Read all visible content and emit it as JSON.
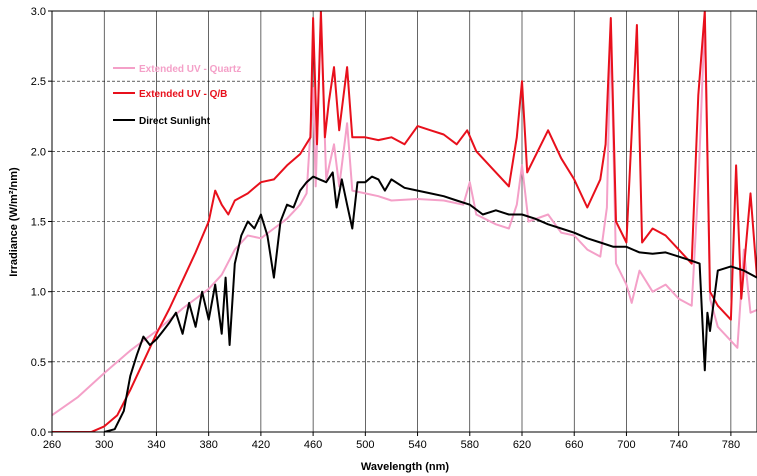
{
  "chart_data": {
    "type": "line",
    "xlabel": "Wavelength (nm)",
    "ylabel": "Irradiance (W/m²/nm)",
    "xlim": [
      260,
      800
    ],
    "ylim": [
      0,
      3.0
    ],
    "x_ticks": [
      "260",
      "300",
      "340",
      "380",
      "420",
      "460",
      "500",
      "540",
      "580",
      "620",
      "660",
      "700",
      "740",
      "780"
    ],
    "y_ticks": [
      "0.0",
      "0.5",
      "1.0",
      "1.5",
      "2.0",
      "2.5",
      "3.0"
    ],
    "grid": "dashed horizontal, solid vertical",
    "legend_position": "top-left inside plot",
    "series": [
      {
        "name": "Extended UV - Quartz",
        "color": "#f4a0c8",
        "points": [
          [
            260,
            0.12
          ],
          [
            280,
            0.25
          ],
          [
            300,
            0.42
          ],
          [
            320,
            0.58
          ],
          [
            340,
            0.72
          ],
          [
            360,
            0.88
          ],
          [
            380,
            1.02
          ],
          [
            390,
            1.12
          ],
          [
            400,
            1.3
          ],
          [
            410,
            1.4
          ],
          [
            420,
            1.38
          ],
          [
            430,
            1.45
          ],
          [
            440,
            1.52
          ],
          [
            450,
            1.62
          ],
          [
            455,
            1.7
          ],
          [
            460,
            2.45
          ],
          [
            462,
            1.75
          ],
          [
            466,
            2.95
          ],
          [
            470,
            1.8
          ],
          [
            476,
            2.05
          ],
          [
            480,
            1.75
          ],
          [
            486,
            2.2
          ],
          [
            490,
            1.72
          ],
          [
            500,
            1.7
          ],
          [
            510,
            1.68
          ],
          [
            520,
            1.65
          ],
          [
            540,
            1.66
          ],
          [
            560,
            1.65
          ],
          [
            575,
            1.62
          ],
          [
            580,
            1.78
          ],
          [
            585,
            1.55
          ],
          [
            600,
            1.48
          ],
          [
            610,
            1.45
          ],
          [
            616,
            1.62
          ],
          [
            620,
            1.9
          ],
          [
            625,
            1.5
          ],
          [
            640,
            1.55
          ],
          [
            650,
            1.42
          ],
          [
            660,
            1.4
          ],
          [
            670,
            1.3
          ],
          [
            680,
            1.25
          ],
          [
            685,
            1.6
          ],
          [
            688,
            2.9
          ],
          [
            692,
            1.2
          ],
          [
            700,
            1.05
          ],
          [
            704,
            0.92
          ],
          [
            710,
            1.15
          ],
          [
            720,
            1.0
          ],
          [
            730,
            1.05
          ],
          [
            740,
            0.95
          ],
          [
            750,
            0.9
          ],
          [
            755,
            1.75
          ],
          [
            760,
            2.95
          ],
          [
            764,
            0.95
          ],
          [
            770,
            0.75
          ],
          [
            780,
            0.65
          ],
          [
            785,
            0.6
          ],
          [
            790,
            1.3
          ],
          [
            795,
            0.85
          ],
          [
            800,
            0.87
          ]
        ]
      },
      {
        "name": "Extended UV - Q/B",
        "color": "#e8101c",
        "points": [
          [
            260,
            0.0
          ],
          [
            290,
            0.0
          ],
          [
            300,
            0.04
          ],
          [
            310,
            0.12
          ],
          [
            320,
            0.3
          ],
          [
            330,
            0.5
          ],
          [
            340,
            0.7
          ],
          [
            350,
            0.88
          ],
          [
            360,
            1.08
          ],
          [
            370,
            1.28
          ],
          [
            380,
            1.5
          ],
          [
            385,
            1.72
          ],
          [
            390,
            1.62
          ],
          [
            395,
            1.55
          ],
          [
            400,
            1.65
          ],
          [
            410,
            1.7
          ],
          [
            420,
            1.78
          ],
          [
            430,
            1.8
          ],
          [
            440,
            1.9
          ],
          [
            450,
            1.98
          ],
          [
            458,
            2.1
          ],
          [
            460,
            2.95
          ],
          [
            463,
            2.05
          ],
          [
            466,
            3.0
          ],
          [
            469,
            2.1
          ],
          [
            472,
            2.35
          ],
          [
            476,
            2.6
          ],
          [
            480,
            2.15
          ],
          [
            486,
            2.6
          ],
          [
            490,
            2.1
          ],
          [
            500,
            2.1
          ],
          [
            510,
            2.08
          ],
          [
            520,
            2.1
          ],
          [
            530,
            2.05
          ],
          [
            540,
            2.18
          ],
          [
            550,
            2.15
          ],
          [
            560,
            2.12
          ],
          [
            570,
            2.05
          ],
          [
            578,
            2.15
          ],
          [
            585,
            2.0
          ],
          [
            590,
            1.95
          ],
          [
            600,
            1.85
          ],
          [
            610,
            1.75
          ],
          [
            616,
            2.1
          ],
          [
            620,
            2.5
          ],
          [
            624,
            1.85
          ],
          [
            640,
            2.15
          ],
          [
            650,
            1.95
          ],
          [
            660,
            1.8
          ],
          [
            670,
            1.6
          ],
          [
            680,
            1.8
          ],
          [
            684,
            2.05
          ],
          [
            688,
            2.95
          ],
          [
            692,
            1.5
          ],
          [
            700,
            1.35
          ],
          [
            708,
            2.9
          ],
          [
            712,
            1.35
          ],
          [
            720,
            1.45
          ],
          [
            730,
            1.4
          ],
          [
            740,
            1.3
          ],
          [
            750,
            1.2
          ],
          [
            755,
            2.4
          ],
          [
            760,
            3.0
          ],
          [
            764,
            1.0
          ],
          [
            770,
            0.9
          ],
          [
            780,
            0.8
          ],
          [
            784,
            1.9
          ],
          [
            788,
            0.95
          ],
          [
            795,
            1.7
          ],
          [
            800,
            1.1
          ]
        ]
      },
      {
        "name": "Direct Sunlight",
        "color": "#000000",
        "points": [
          [
            300,
            0.0
          ],
          [
            308,
            0.02
          ],
          [
            315,
            0.15
          ],
          [
            320,
            0.4
          ],
          [
            325,
            0.55
          ],
          [
            330,
            0.68
          ],
          [
            335,
            0.62
          ],
          [
            340,
            0.66
          ],
          [
            345,
            0.72
          ],
          [
            350,
            0.78
          ],
          [
            355,
            0.85
          ],
          [
            360,
            0.7
          ],
          [
            365,
            0.92
          ],
          [
            370,
            0.75
          ],
          [
            375,
            1.0
          ],
          [
            380,
            0.8
          ],
          [
            385,
            1.05
          ],
          [
            390,
            0.7
          ],
          [
            393,
            1.1
          ],
          [
            396,
            0.62
          ],
          [
            400,
            1.2
          ],
          [
            405,
            1.4
          ],
          [
            410,
            1.5
          ],
          [
            415,
            1.45
          ],
          [
            420,
            1.55
          ],
          [
            425,
            1.4
          ],
          [
            430,
            1.1
          ],
          [
            435,
            1.5
          ],
          [
            440,
            1.62
          ],
          [
            445,
            1.6
          ],
          [
            450,
            1.72
          ],
          [
            455,
            1.78
          ],
          [
            460,
            1.82
          ],
          [
            465,
            1.8
          ],
          [
            470,
            1.78
          ],
          [
            475,
            1.85
          ],
          [
            478,
            1.6
          ],
          [
            482,
            1.8
          ],
          [
            486,
            1.62
          ],
          [
            490,
            1.45
          ],
          [
            494,
            1.78
          ],
          [
            500,
            1.78
          ],
          [
            505,
            1.82
          ],
          [
            510,
            1.8
          ],
          [
            515,
            1.72
          ],
          [
            520,
            1.8
          ],
          [
            530,
            1.74
          ],
          [
            540,
            1.72
          ],
          [
            550,
            1.7
          ],
          [
            560,
            1.68
          ],
          [
            570,
            1.65
          ],
          [
            580,
            1.62
          ],
          [
            590,
            1.55
          ],
          [
            600,
            1.58
          ],
          [
            610,
            1.55
          ],
          [
            620,
            1.55
          ],
          [
            630,
            1.52
          ],
          [
            640,
            1.48
          ],
          [
            650,
            1.45
          ],
          [
            660,
            1.42
          ],
          [
            670,
            1.38
          ],
          [
            680,
            1.35
          ],
          [
            690,
            1.32
          ],
          [
            700,
            1.32
          ],
          [
            710,
            1.28
          ],
          [
            720,
            1.27
          ],
          [
            730,
            1.28
          ],
          [
            740,
            1.25
          ],
          [
            750,
            1.22
          ],
          [
            756,
            1.2
          ],
          [
            760,
            0.44
          ],
          [
            762,
            0.85
          ],
          [
            764,
            0.72
          ],
          [
            770,
            1.15
          ],
          [
            780,
            1.18
          ],
          [
            790,
            1.15
          ],
          [
            800,
            1.1
          ]
        ]
      }
    ]
  }
}
